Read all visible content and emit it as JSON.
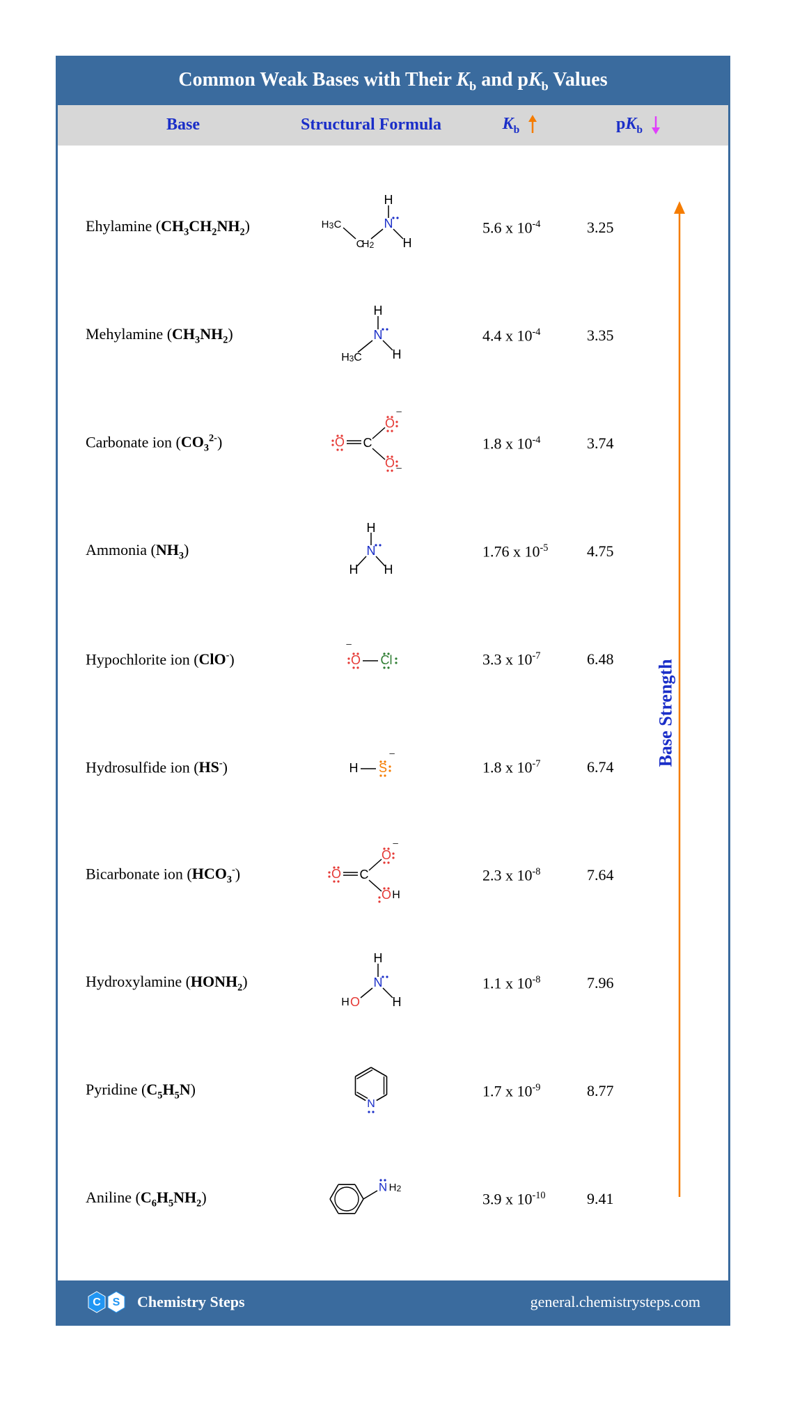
{
  "title": {
    "prefix": "Common Weak Bases with Their ",
    "kb": "Kb",
    "mid": " and p",
    "kb2": "Kb",
    "suffix": " Values"
  },
  "headers": {
    "base": "Base",
    "struct": "Structural Formula",
    "kb_letter": "K",
    "kb_sub": "b",
    "pkb_prefix": "p",
    "pkb_letter": "K",
    "pkb_sub": "b"
  },
  "colors": {
    "title_bg": "#3a6b9e",
    "header_bg": "#d7d7d7",
    "header_text": "#1a2ec8",
    "kb_arrow": "#f57c00",
    "pkb_arrow": "#e040fb",
    "nitrogen": "#1a2ec8",
    "oxygen": "#e53935",
    "sulfur": "#f57c00",
    "chlorine": "#2e7d32",
    "carbon": "#000000",
    "hydrogen": "#000000",
    "side_arrow": "#f57c00",
    "side_label": "#1a2ec8"
  },
  "side_label": "Base Strength",
  "rows": [
    {
      "name": "Ehylamine",
      "formula": "CH₃CH₂NH₂",
      "kb_coef": "5.6",
      "kb_exp": "-4",
      "pkb": "3.25",
      "struct": "ethylamine"
    },
    {
      "name": "Mehylamine",
      "formula": "CH₃NH₂",
      "kb_coef": "4.4",
      "kb_exp": "-4",
      "pkb": "3.35",
      "struct": "methylamine"
    },
    {
      "name": "Carbonate ion",
      "formula": "CO₃²⁻",
      "kb_coef": "1.8",
      "kb_exp": "-4",
      "pkb": "3.74",
      "struct": "carbonate"
    },
    {
      "name": "Ammonia",
      "formula": "NH₃",
      "kb_coef": "1.76",
      "kb_exp": "-5",
      "pkb": "4.75",
      "struct": "ammonia"
    },
    {
      "name": "Hypochlorite ion",
      "formula": "ClO⁻",
      "kb_coef": "3.3",
      "kb_exp": "-7",
      "pkb": "6.48",
      "struct": "hypochlorite"
    },
    {
      "name": "Hydrosulfide ion",
      "formula": "HS⁻",
      "kb_coef": "1.8",
      "kb_exp": "-7",
      "pkb": "6.74",
      "struct": "hydrosulfide"
    },
    {
      "name": "Bicarbonate ion",
      "formula": "HCO₃⁻",
      "kb_coef": "2.3",
      "kb_exp": "-8",
      "pkb": "7.64",
      "struct": "bicarbonate"
    },
    {
      "name": "Hydroxylamine",
      "formula": "HONH₂",
      "kb_coef": "1.1",
      "kb_exp": "-8",
      "pkb": "7.96",
      "struct": "hydroxylamine"
    },
    {
      "name": "Pyridine",
      "formula": "C₅H₅N",
      "kb_coef": "1.7",
      "kb_exp": "-9",
      "pkb": "8.77",
      "struct": "pyridine"
    },
    {
      "name": "Aniline",
      "formula": "C₆H₅NH₂",
      "kb_coef": "3.9",
      "kb_exp": "-10",
      "pkb": "9.41",
      "struct": "aniline"
    }
  ],
  "footer": {
    "brand": "Chemistry Steps",
    "url": "general.chemistrysteps.com",
    "hex_c": "C",
    "hex_s": "S"
  }
}
